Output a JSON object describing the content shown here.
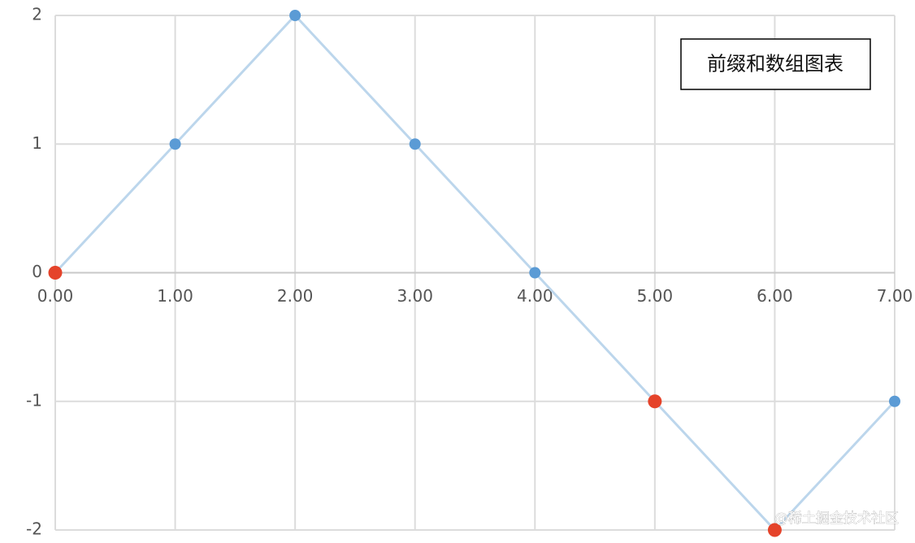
{
  "chart_data": {
    "type": "line",
    "title": "前缀和数组图表",
    "x": [
      0,
      1,
      2,
      3,
      4,
      5,
      6,
      7
    ],
    "series": [
      {
        "color": "#5b9bd5",
        "line_color": "#bcd6ec",
        "values": [
          0,
          1,
          2,
          1,
          0,
          -1,
          -2,
          -1
        ]
      }
    ],
    "highlight": {
      "color": "#e5432a",
      "x": [
        0,
        5,
        6
      ],
      "values": [
        0,
        -1,
        -2
      ]
    },
    "xlim": [
      0,
      7
    ],
    "xticks": [
      {
        "value": 0,
        "label": "0.00"
      },
      {
        "value": 1,
        "label": "1.00"
      },
      {
        "value": 2,
        "label": "2.00"
      },
      {
        "value": 3,
        "label": "3.00"
      },
      {
        "value": 4,
        "label": "4.00"
      },
      {
        "value": 5,
        "label": "5.00"
      },
      {
        "value": 6,
        "label": "6.00"
      },
      {
        "value": 7,
        "label": "7.00"
      }
    ],
    "ylim": [
      -2,
      2
    ],
    "yticks": [
      -2,
      -1,
      0,
      1,
      2
    ],
    "grid": true,
    "watermark": "@稀土掘金技术社区"
  }
}
